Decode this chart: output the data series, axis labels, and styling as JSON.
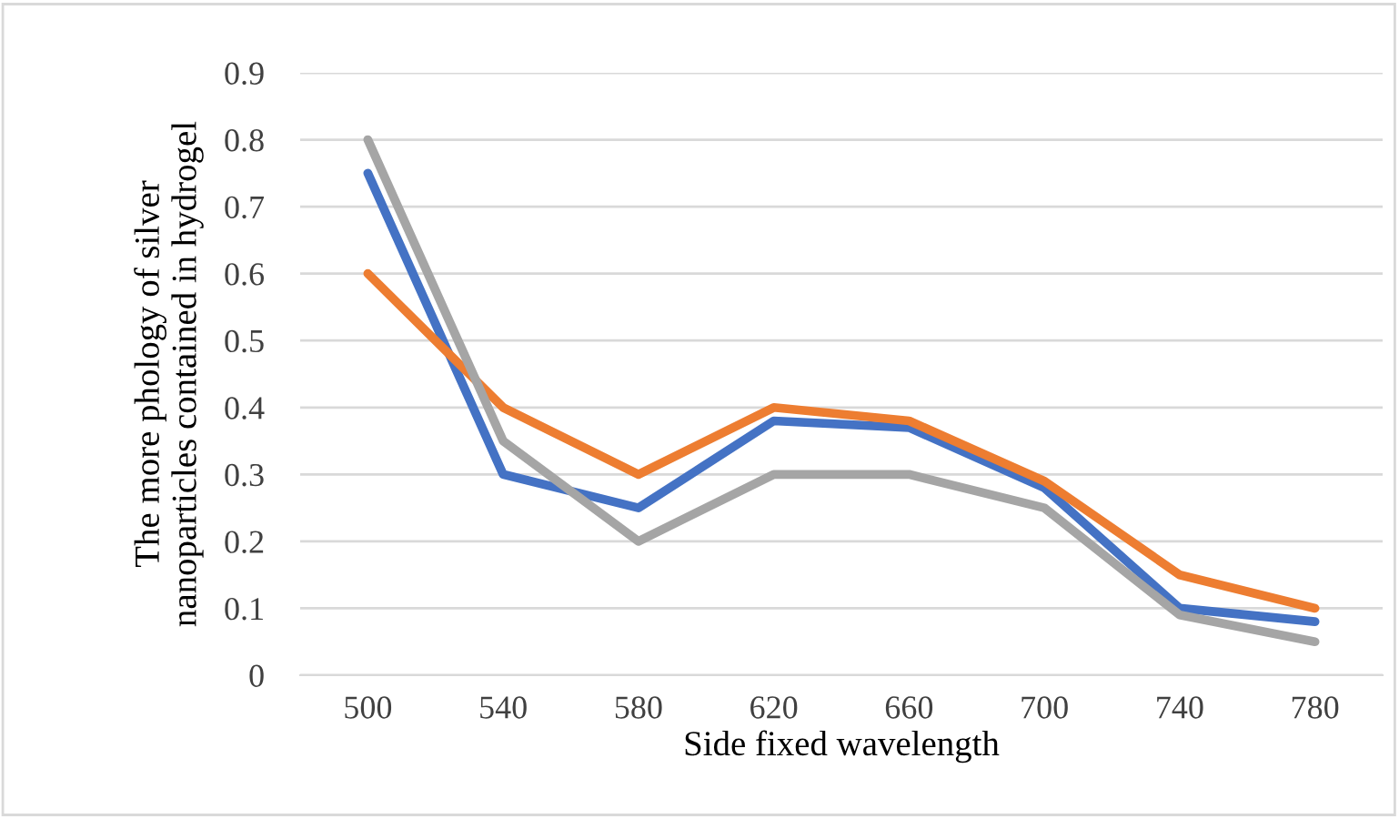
{
  "chart_data": {
    "type": "line",
    "xlabel": "Side fixed wavelength",
    "ylabel": "The more phology of silver\nnanoparticles contained in hydrogel",
    "categories": [
      "500",
      "540",
      "580",
      "620",
      "660",
      "700",
      "740",
      "780"
    ],
    "series": [
      {
        "color": "#4472c4",
        "values": [
          0.75,
          0.3,
          0.25,
          0.38,
          0.37,
          0.28,
          0.1,
          0.08
        ]
      },
      {
        "color": "#ed7d31",
        "values": [
          0.6,
          0.4,
          0.3,
          0.4,
          0.38,
          0.29,
          0.15,
          0.1
        ]
      },
      {
        "color": "#a5a5a5",
        "values": [
          0.8,
          0.35,
          0.2,
          0.3,
          0.3,
          0.25,
          0.09,
          0.05
        ]
      }
    ],
    "ylim": [
      0,
      0.9
    ],
    "yticks": [
      0,
      0.1,
      0.2,
      0.3,
      0.4,
      0.5,
      0.6,
      0.7,
      0.8,
      0.9
    ],
    "grid": "y",
    "legend": false,
    "marker": "none",
    "line_style": "solid"
  }
}
